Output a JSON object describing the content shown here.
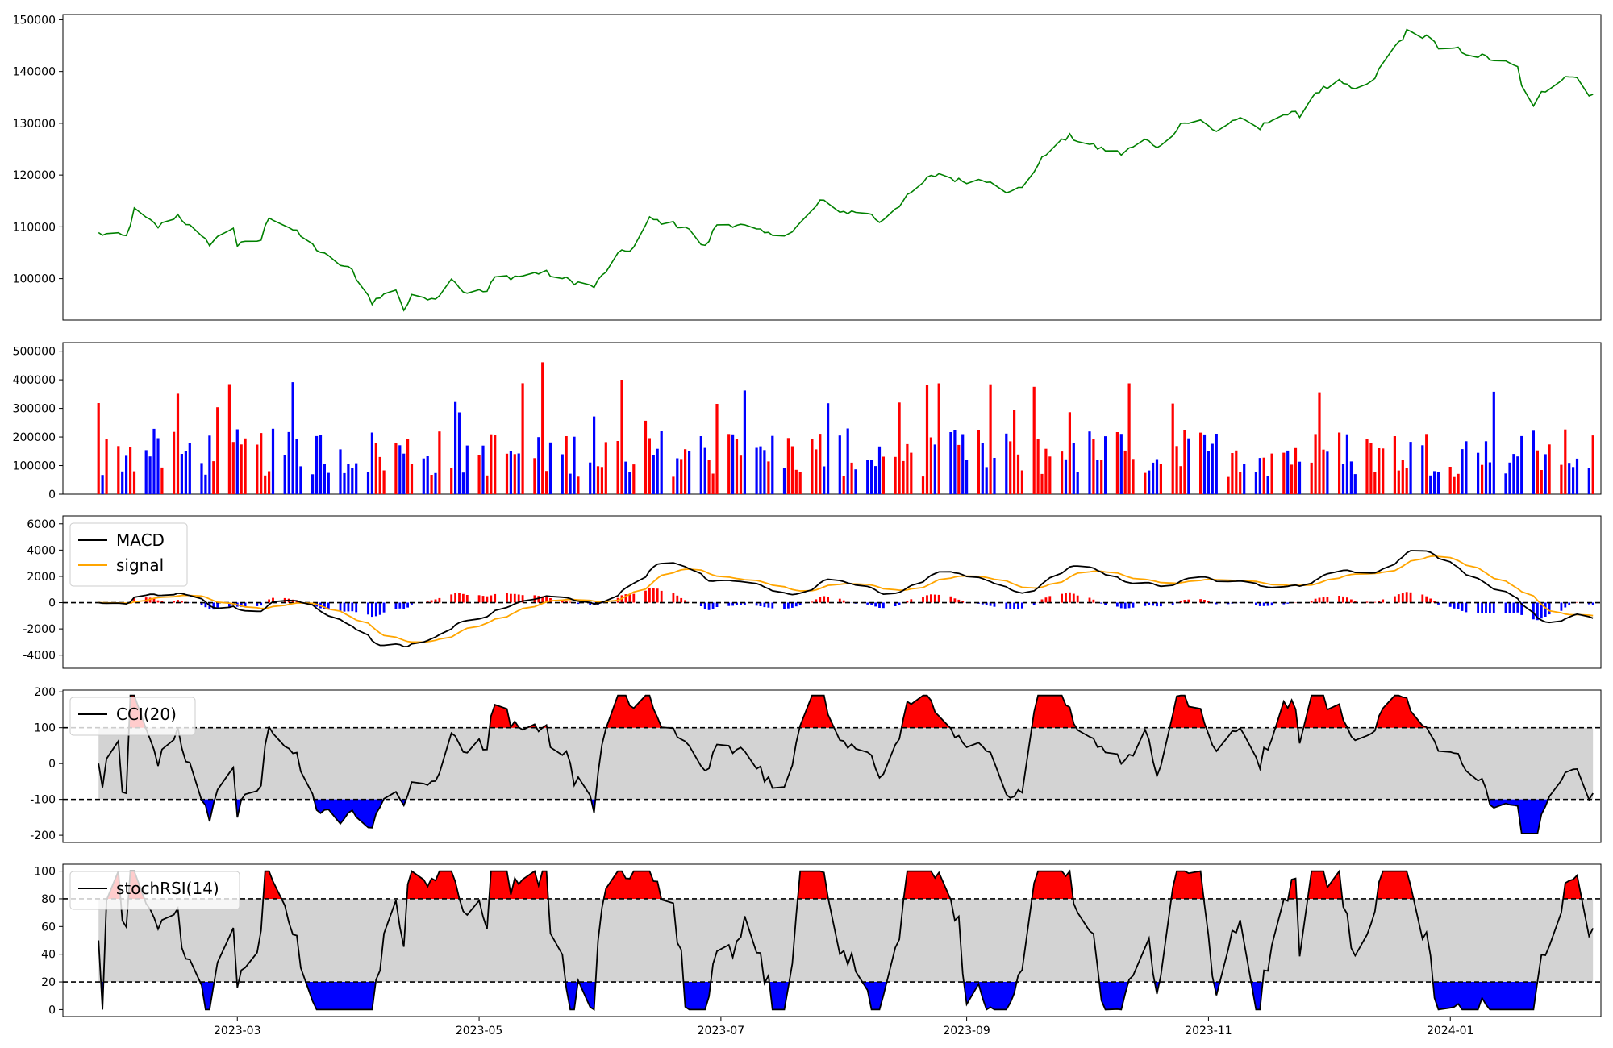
{
  "colors": {
    "price": "#008000",
    "vol_up": "#ff0000",
    "vol_down": "#0000ff",
    "vol_flat": "#000000",
    "macd": "#000000",
    "signal": "#ffa500",
    "hist_pos": "#ff0000",
    "hist_neg": "#0000ff",
    "band": "#d3d3d3",
    "over": "#ff0000",
    "under": "#0000ff",
    "ref_line": "#000000"
  },
  "chart_data": [
    {
      "panel": "price",
      "type": "line",
      "ylim": [
        92000,
        151000
      ],
      "yticks": [
        "100000",
        "110000",
        "120000",
        "130000",
        "140000",
        "150000"
      ],
      "x_range": [
        "2023-01-16",
        "2024-02-08"
      ],
      "anchors": [
        [
          "2023-01-25",
          108700
        ],
        [
          "2023-02-01",
          108100
        ],
        [
          "2023-02-03",
          113200
        ],
        [
          "2023-02-09",
          110000
        ],
        [
          "2023-02-14",
          112300
        ],
        [
          "2023-02-20",
          107800
        ],
        [
          "2023-02-22",
          106800
        ],
        [
          "2023-02-28",
          110000
        ],
        [
          "2023-03-01",
          106400
        ],
        [
          "2023-03-07",
          107500
        ],
        [
          "2023-03-09",
          112100
        ],
        [
          "2023-03-14",
          110000
        ],
        [
          "2023-03-20",
          106400
        ],
        [
          "2023-03-23",
          104500
        ],
        [
          "2023-03-30",
          101500
        ],
        [
          "2023-04-04",
          95500
        ],
        [
          "2023-04-10",
          98100
        ],
        [
          "2023-04-12",
          94000
        ],
        [
          "2023-04-14",
          96400
        ],
        [
          "2023-04-21",
          96500
        ],
        [
          "2023-04-24",
          100500
        ],
        [
          "2023-04-27",
          97500
        ],
        [
          "2023-05-03",
          97500
        ],
        [
          "2023-05-05",
          100200
        ],
        [
          "2023-05-12",
          100500
        ],
        [
          "2023-05-17",
          101300
        ],
        [
          "2023-05-22",
          100000
        ],
        [
          "2023-05-30",
          98400
        ],
        [
          "2023-06-05",
          104600
        ],
        [
          "2023-06-09",
          106000
        ],
        [
          "2023-06-13",
          111500
        ],
        [
          "2023-06-22",
          110000
        ],
        [
          "2023-06-27",
          106000
        ],
        [
          "2023-06-30",
          110500
        ],
        [
          "2023-07-05",
          110500
        ],
        [
          "2023-07-13",
          108500
        ],
        [
          "2023-07-19",
          109000
        ],
        [
          "2023-07-24",
          113000
        ],
        [
          "2023-07-26",
          115000
        ],
        [
          "2023-08-01",
          112900
        ],
        [
          "2023-08-07",
          112800
        ],
        [
          "2023-08-10",
          111000
        ],
        [
          "2023-08-16",
          115000
        ],
        [
          "2023-08-22",
          119200
        ],
        [
          "2023-08-25",
          120300
        ],
        [
          "2023-08-30",
          118900
        ],
        [
          "2023-09-07",
          119100
        ],
        [
          "2023-09-12",
          116500
        ],
        [
          "2023-09-15",
          117800
        ],
        [
          "2023-09-22",
          125100
        ],
        [
          "2023-09-27",
          127400
        ],
        [
          "2023-10-03",
          125500
        ],
        [
          "2023-10-10",
          124100
        ],
        [
          "2023-10-16",
          126700
        ],
        [
          "2023-10-20",
          125400
        ],
        [
          "2023-10-25",
          130000
        ],
        [
          "2023-10-30",
          130400
        ],
        [
          "2023-11-03",
          128500
        ],
        [
          "2023-11-08",
          130900
        ],
        [
          "2023-11-14",
          128900
        ],
        [
          "2023-11-18",
          131800
        ],
        [
          "2023-11-24",
          131700
        ],
        [
          "2023-11-28",
          136000
        ],
        [
          "2023-12-04",
          137900
        ],
        [
          "2023-12-07",
          136500
        ],
        [
          "2023-12-12",
          137600
        ],
        [
          "2023-12-16",
          142800
        ],
        [
          "2023-12-21",
          147600
        ],
        [
          "2023-12-27",
          146700
        ],
        [
          "2023-12-30",
          142800
        ],
        [
          "2024-01-02",
          144500
        ],
        [
          "2024-01-06",
          143400
        ],
        [
          "2024-01-10",
          142700
        ],
        [
          "2024-01-14",
          141900
        ],
        [
          "2024-01-18",
          140700
        ],
        [
          "2024-01-21",
          131500
        ],
        [
          "2024-01-24",
          135800
        ],
        [
          "2024-01-30",
          139300
        ],
        [
          "2024-02-02",
          138800
        ],
        [
          "2024-02-05",
          135800
        ]
      ],
      "values_by_x": {
        "dates_per_px_note_label": ""
      }
    },
    {
      "panel": "volume",
      "type": "bar",
      "ylim": [
        0,
        530000
      ],
      "yticks": [
        "0",
        "100000",
        "200000",
        "300000",
        "400000",
        "500000"
      ]
    },
    {
      "panel": "macd",
      "type": "line",
      "ylim": [
        -5000,
        6600
      ],
      "yticks": [
        "-4000",
        "-2000",
        "0",
        "2000",
        "4000",
        "6000"
      ],
      "legend": {
        "position": "top-left",
        "entries": [
          "MACD",
          "signal"
        ]
      }
    },
    {
      "panel": "cci",
      "type": "area",
      "ylim": [
        -220,
        205
      ],
      "yticks": [
        "-200",
        "-100",
        "0",
        "100",
        "200"
      ],
      "thresholds": [
        100,
        -100
      ],
      "legend": {
        "position": "top-left",
        "entries": [
          "CCI(20)"
        ]
      }
    },
    {
      "panel": "stochrsi",
      "type": "area",
      "ylim": [
        -5,
        105
      ],
      "yticks": [
        "0",
        "20",
        "40",
        "60",
        "80",
        "100"
      ],
      "thresholds": [
        80,
        20
      ],
      "legend": {
        "position": "top-left",
        "entries": [
          "stochRSI(14)"
        ]
      }
    }
  ],
  "x_axis": {
    "tick_dates": [
      "2023-03-01",
      "2023-05-01",
      "2023-07-01",
      "2023-09-01",
      "2023-11-01",
      "2024-01-01"
    ],
    "tick_labels": [
      "2023-03",
      "2023-05",
      "2023-07",
      "2023-09",
      "2023-11",
      "2024-01"
    ]
  }
}
